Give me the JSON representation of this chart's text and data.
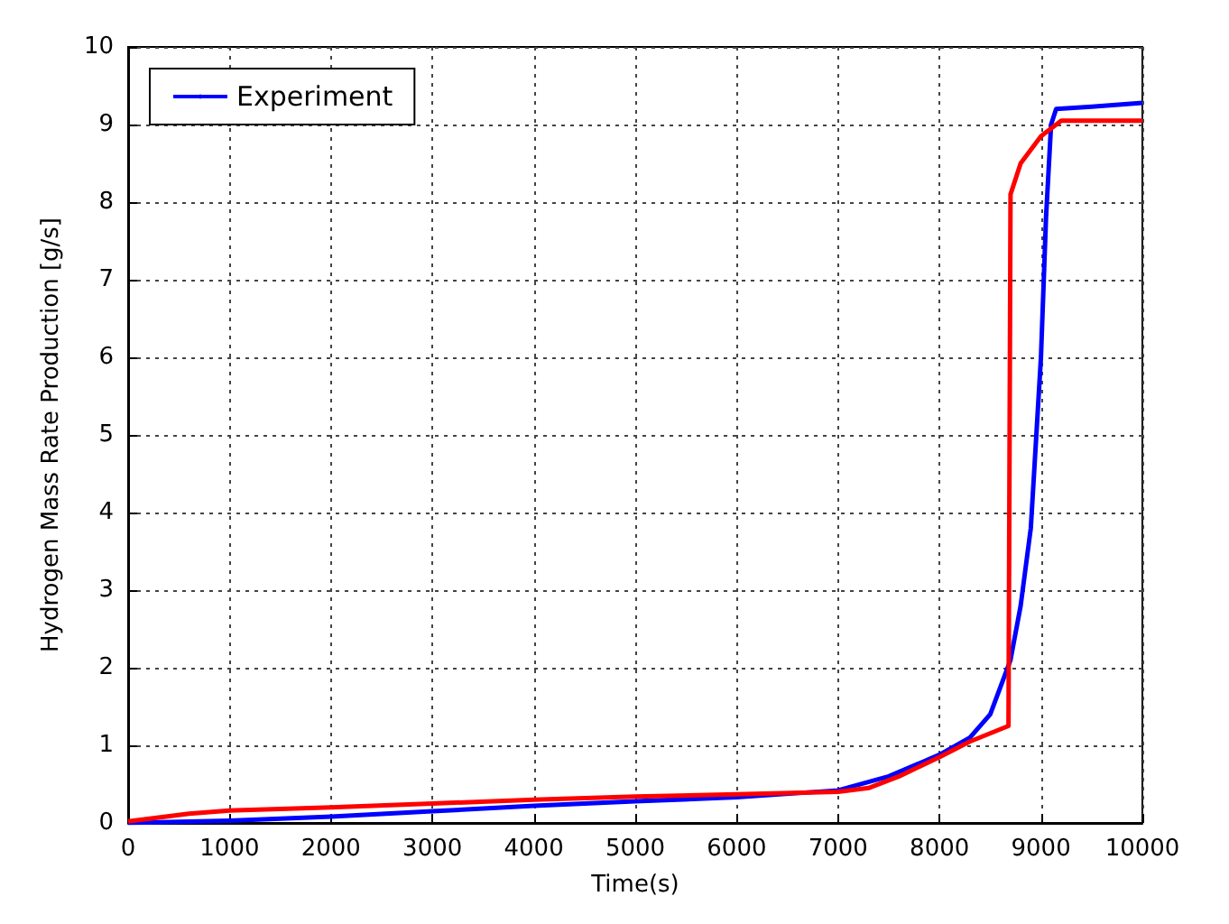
{
  "chart_data": {
    "type": "line",
    "xlabel": "Time(s)",
    "ylabel": "Hydrogen Mass Rate Production [g/s]",
    "xlim": [
      0,
      10000
    ],
    "xticks": [
      0,
      1000,
      2000,
      3000,
      4000,
      5000,
      6000,
      7000,
      8000,
      9000,
      10000
    ],
    "ylim": [
      0,
      10
    ],
    "yticks": [
      0,
      1,
      2,
      3,
      4,
      5,
      6,
      7,
      8,
      9,
      10
    ],
    "grid": true,
    "legend": "top left",
    "marker": "none",
    "line_style": "solid",
    "series": [
      {
        "name": "Experiment",
        "color": "#0000ff",
        "x": [
          0,
          1000,
          2000,
          3000,
          4000,
          5000,
          6000,
          7000,
          7500,
          8000,
          8300,
          8500,
          8700,
          8800,
          8900,
          9000,
          9050,
          9100,
          9150,
          9500,
          10000
        ],
        "values": [
          0,
          0.03,
          0.08,
          0.15,
          0.22,
          0.28,
          0.33,
          0.42,
          0.6,
          0.88,
          1.1,
          1.4,
          2.1,
          2.8,
          3.8,
          6.0,
          7.8,
          9.0,
          9.2,
          9.23,
          9.28
        ]
      },
      {
        "color": "#ff0000",
        "x": [
          0,
          300,
          600,
          1000,
          2000,
          3000,
          4000,
          5000,
          6000,
          7000,
          7300,
          7600,
          8000,
          8300,
          8680,
          8700,
          8800,
          9000,
          9200,
          10000
        ],
        "values": [
          0.02,
          0.07,
          0.12,
          0.16,
          0.2,
          0.25,
          0.3,
          0.34,
          0.37,
          0.4,
          0.45,
          0.6,
          0.85,
          1.05,
          1.25,
          8.1,
          8.5,
          8.85,
          9.05,
          9.05
        ]
      }
    ]
  }
}
